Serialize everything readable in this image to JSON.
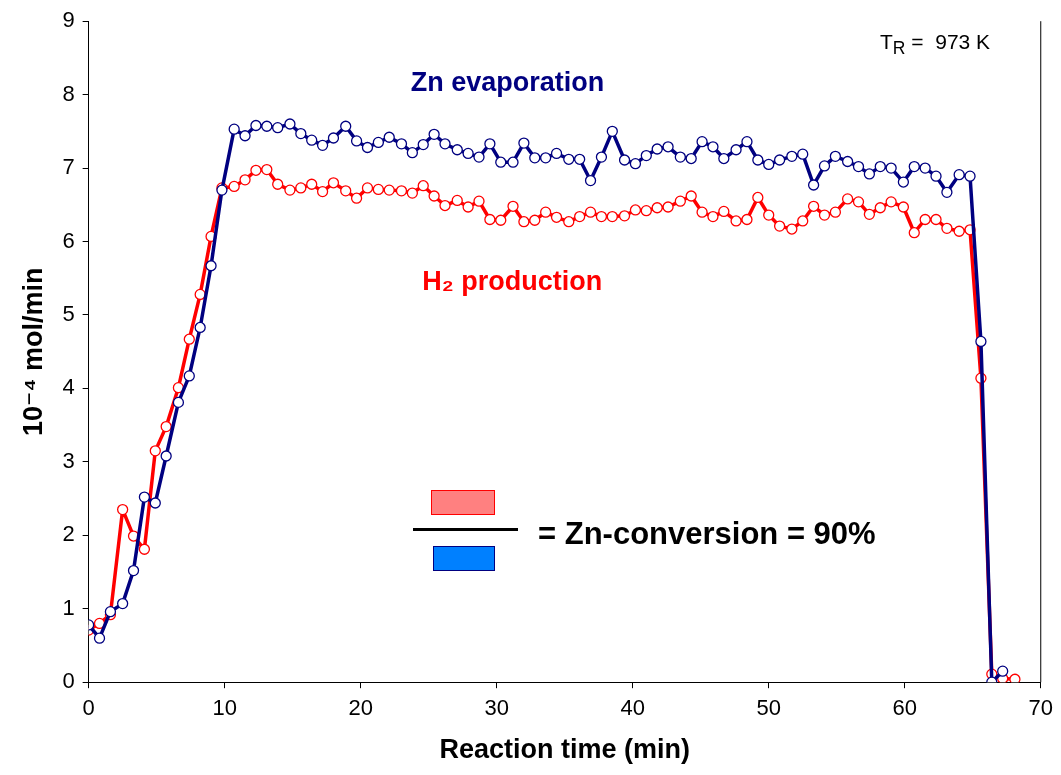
{
  "chart_data": {
    "type": "line",
    "xlabel": "Reaction time (min)",
    "ylabel": "10⁻⁴ mol/min",
    "x": [
      0,
      0.8,
      1.6,
      2.5,
      3.3,
      4.1,
      4.9,
      5.7,
      6.6,
      7.4,
      8.2,
      9.0,
      9.8,
      10.7,
      11.5,
      12.3,
      13.1,
      13.9,
      14.8,
      15.6,
      16.4,
      17.2,
      18.0,
      18.9,
      19.7,
      20.5,
      21.3,
      22.1,
      23.0,
      23.8,
      24.6,
      25.4,
      26.2,
      27.1,
      27.9,
      28.7,
      29.5,
      30.3,
      31.2,
      32.0,
      32.8,
      33.6,
      34.4,
      35.3,
      36.1,
      36.9,
      37.7,
      38.5,
      39.4,
      40.2,
      41.0,
      41.8,
      42.6,
      43.5,
      44.3,
      45.1,
      45.9,
      46.7,
      47.6,
      48.4,
      49.2,
      50.0,
      50.8,
      51.7,
      52.5,
      53.3,
      54.1,
      54.9,
      55.8,
      56.6,
      57.4,
      58.2,
      59.0,
      59.9,
      60.7,
      61.5,
      62.3,
      63.1,
      64.0,
      64.8,
      65.6,
      66.4,
      67.2,
      68.1
    ],
    "series": [
      {
        "name": "Zn evaporation",
        "color": "#000080",
        "values": [
          0.78,
          0.6,
          0.96,
          1.07,
          1.52,
          2.52,
          2.44,
          3.08,
          3.81,
          4.17,
          4.83,
          5.67,
          6.7,
          7.53,
          7.44,
          7.58,
          7.57,
          7.55,
          7.6,
          7.47,
          7.38,
          7.31,
          7.41,
          7.57,
          7.37,
          7.28,
          7.35,
          7.42,
          7.33,
          7.21,
          7.32,
          7.46,
          7.33,
          7.25,
          7.2,
          7.15,
          7.33,
          7.08,
          7.08,
          7.34,
          7.14,
          7.14,
          7.2,
          7.12,
          7.12,
          6.83,
          7.15,
          7.5,
          7.11,
          7.06,
          7.17,
          7.26,
          7.29,
          7.15,
          7.13,
          7.36,
          7.29,
          7.13,
          7.25,
          7.36,
          7.11,
          7.05,
          7.11,
          7.16,
          7.19,
          6.77,
          7.03,
          7.16,
          7.09,
          7.02,
          6.92,
          7.02,
          7.0,
          6.81,
          7.02,
          7.0,
          6.89,
          6.67,
          6.91,
          6.89,
          4.64,
          0.0,
          0.15,
          null
        ]
      },
      {
        "name": "H₂ production",
        "color": "#ff0000",
        "values": [
          0.71,
          0.8,
          0.92,
          2.35,
          1.99,
          1.81,
          3.15,
          3.48,
          4.01,
          4.67,
          5.28,
          6.07,
          6.73,
          6.75,
          6.84,
          6.97,
          6.98,
          6.78,
          6.7,
          6.73,
          6.78,
          6.68,
          6.8,
          6.69,
          6.59,
          6.73,
          6.71,
          6.7,
          6.69,
          6.66,
          6.76,
          6.62,
          6.49,
          6.56,
          6.47,
          6.55,
          6.3,
          6.29,
          6.48,
          6.27,
          6.29,
          6.4,
          6.33,
          6.27,
          6.34,
          6.4,
          6.34,
          6.34,
          6.35,
          6.43,
          6.42,
          6.46,
          6.47,
          6.55,
          6.62,
          6.4,
          6.34,
          6.41,
          6.28,
          6.3,
          6.6,
          6.36,
          6.21,
          6.17,
          6.28,
          6.48,
          6.36,
          6.4,
          6.58,
          6.54,
          6.37,
          6.46,
          6.54,
          6.47,
          6.12,
          6.3,
          6.3,
          6.18,
          6.14,
          6.16,
          4.14,
          0.11,
          0.05,
          0.04
        ]
      }
    ],
    "xlim": [
      0,
      70
    ],
    "xticks": [
      0,
      10,
      20,
      30,
      40,
      50,
      60,
      70
    ],
    "ylim": [
      0,
      9
    ],
    "yticks": [
      0,
      1,
      2,
      3,
      4,
      5,
      6,
      7,
      8,
      9
    ],
    "grid": false,
    "legend": false,
    "marker": "circle",
    "line_style": "solid",
    "annotations": [
      "T$_{R}$ =  973 K",
      "= Zn-conversion = 90%"
    ]
  }
}
